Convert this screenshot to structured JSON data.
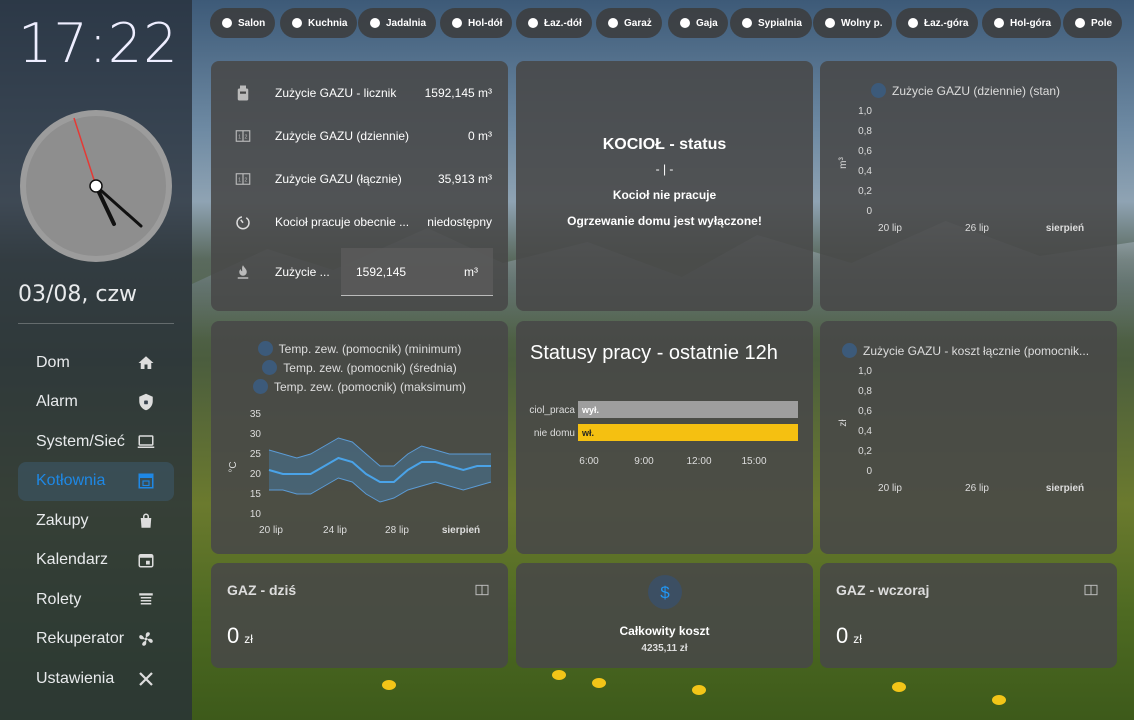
{
  "sidebar": {
    "time": "17:22",
    "date": "03/08, czw",
    "items": [
      {
        "label": "Dom",
        "icon": "home-icon"
      },
      {
        "label": "Alarm",
        "icon": "shield-icon"
      },
      {
        "label": "System/Sieć",
        "icon": "computer-icon"
      },
      {
        "label": "Kotłownia",
        "icon": "boiler-icon",
        "active": true
      },
      {
        "label": "Zakupy",
        "icon": "shopping-bag-icon"
      },
      {
        "label": "Kalendarz",
        "icon": "calendar-icon"
      },
      {
        "label": "Rolety",
        "icon": "blinds-icon"
      },
      {
        "label": "Rekuperator",
        "icon": "fan-icon"
      },
      {
        "label": "Ustawienia",
        "icon": "tools-icon"
      }
    ]
  },
  "chips": [
    "Salon",
    "Kuchnia",
    "Jadalnia",
    "Hol-dół",
    "Łaz.-dół",
    "Garaż",
    "Gaja",
    "Sypialnia",
    "Wolny p.",
    "Łaz.-góra",
    "Hol-góra",
    "Pole"
  ],
  "entities": {
    "rows": [
      {
        "name": "Zużycie GAZU - licznik",
        "value": "1592,145 m³",
        "icon": "gas-meter-icon"
      },
      {
        "name": "Zużycie GAZU (dziennie)",
        "value": "0 m³",
        "icon": "counter-icon"
      },
      {
        "name": "Zużycie GAZU (łącznie)",
        "value": "35,913 m³",
        "icon": "counter-icon"
      },
      {
        "name": "Kocioł pracuje obecnie ...",
        "value": "niedostępny",
        "icon": "timer-icon"
      }
    ],
    "input_label": "Zużycie ...",
    "input_value": "1592,145",
    "input_unit": "m³",
    "input_icon": "fire-icon"
  },
  "boiler_status": {
    "title": "KOCIOŁ - status",
    "sub": "- | -",
    "line1": "Kocioł nie pracuje",
    "line2": "Ogrzewanie domu jest wyłączone!"
  },
  "gas_daily_chart": {
    "legend": "Zużycie GAZU (dziennie) (stan)",
    "ylabel": "m³"
  },
  "temp_chart": {
    "legend": [
      "Temp. zew. (pomocnik) (minimum)",
      "Temp. zew. (pomocnik) (średnia)",
      "Temp. zew. (pomocnik) (maksimum)"
    ],
    "ylabel": "°C"
  },
  "work_status": {
    "title": "Statusy pracy - ostatnie 12h",
    "bars": [
      {
        "label": "ciol_praca",
        "state": "wył.",
        "color": "#9e9e9e"
      },
      {
        "label": "nie domu",
        "state": "wł.",
        "color": "#f5c011"
      }
    ]
  },
  "cost_chart": {
    "legend": "Zużycie GAZU - koszt łącznie (pomocnik...",
    "ylabel": "zł"
  },
  "gas_today": {
    "title": "GAZ - dziś",
    "value": "0",
    "unit": "zł"
  },
  "total_cost": {
    "label": "Całkowity koszt",
    "value": "4235,11 zł",
    "icon": "dollar-icon"
  },
  "gas_yesterday": {
    "title": "GAZ - wczoraj",
    "value": "0",
    "unit": "zł"
  },
  "chart_data": [
    {
      "type": "line",
      "legend": [
        "Zużycie GAZU (dziennie) (stan)"
      ],
      "ylabel": "m³",
      "ylim": [
        0,
        1.0
      ],
      "yticks": [
        "0",
        "0,2",
        "0,4",
        "0,6",
        "0,8",
        "1,0"
      ],
      "xticks": [
        "20 lip",
        "26 lip",
        "sierpień"
      ],
      "series": [
        {
          "name": "Zużycie GAZU (dziennie) (stan)",
          "values": []
        }
      ]
    },
    {
      "type": "area",
      "legend": [
        "Temp. zew. (pomocnik) (minimum)",
        "Temp. zew. (pomocnik) (średnia)",
        "Temp. zew. (pomocnik) (maksimum)"
      ],
      "ylabel": "°C",
      "ylim": [
        10,
        35
      ],
      "yticks": [
        "10",
        "15",
        "20",
        "25",
        "30",
        "35"
      ],
      "xticks": [
        "20 lip",
        "24 lip",
        "28 lip",
        "sierpień"
      ],
      "x": [
        18,
        19,
        20,
        21,
        22,
        23,
        24,
        25,
        26,
        27,
        28,
        29,
        30,
        31,
        32,
        33,
        34
      ],
      "series": [
        {
          "name": "Temp. zew. (pomocnik) (minimum)",
          "values": [
            16,
            16,
            15,
            15,
            17,
            19,
            18,
            15,
            13,
            14,
            16,
            17,
            18,
            17,
            16,
            17,
            18
          ]
        },
        {
          "name": "Temp. zew. (pomocnik) (średnia)",
          "values": [
            21,
            20,
            20,
            20,
            22,
            24,
            23,
            20,
            18,
            18,
            21,
            23,
            23,
            22,
            21,
            22,
            22
          ]
        },
        {
          "name": "Temp. zew. (pomocnik) (maksimum)",
          "values": [
            26,
            25,
            24,
            25,
            27,
            29,
            28,
            25,
            22,
            22,
            25,
            27,
            26,
            25,
            25,
            25,
            25
          ]
        }
      ]
    },
    {
      "type": "bar",
      "title": "Statusy pracy - ostatnie 12h",
      "categories": [
        "ciol_praca",
        "nie domu"
      ],
      "values": [
        "wył.",
        "wł."
      ],
      "xticks": [
        "6:00",
        "9:00",
        "12:00",
        "15:00"
      ]
    },
    {
      "type": "line",
      "legend": [
        "Zużycie GAZU - koszt łącznie (pomocnik..."
      ],
      "ylabel": "zł",
      "ylim": [
        0,
        1.0
      ],
      "yticks": [
        "0",
        "0,2",
        "0,4",
        "0,6",
        "0,8",
        "1,0"
      ],
      "xticks": [
        "20 lip",
        "26 lip",
        "sierpień"
      ],
      "series": [
        {
          "name": "Zużycie GAZU - koszt łącznie (pomocnik...",
          "values": []
        }
      ]
    }
  ]
}
